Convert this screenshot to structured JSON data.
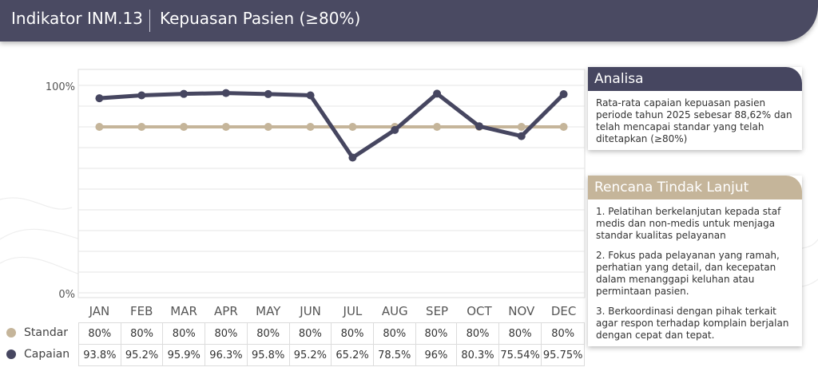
{
  "header": {
    "title": "Indikator INM.13",
    "subtitle": "Kepuasan Pasien (≥80%)"
  },
  "colors": {
    "header_bg": "#4a4a62",
    "standar": "#c5b59a",
    "capaian": "#464660",
    "panel_analisa_head": "#464660",
    "panel_rtl_head": "#c5b59a"
  },
  "chart_data": {
    "type": "line",
    "categories": [
      "JAN",
      "FEB",
      "MAR",
      "APR",
      "MAY",
      "JUN",
      "JUL",
      "AUG",
      "SEP",
      "OCT",
      "NOV",
      "DEC"
    ],
    "ylim": [
      0,
      100
    ],
    "y_ticks": [
      "100%",
      "0%"
    ],
    "grid": true,
    "series": [
      {
        "name": "Standar",
        "values": [
          80,
          80,
          80,
          80,
          80,
          80,
          80,
          80,
          80,
          80,
          80,
          80
        ],
        "labels": [
          "80%",
          "80%",
          "80%",
          "80%",
          "80%",
          "80%",
          "80%",
          "80%",
          "80%",
          "80%",
          "80%",
          "80%"
        ]
      },
      {
        "name": "Capaian",
        "values": [
          93.8,
          95.2,
          95.9,
          96.3,
          95.8,
          95.2,
          65.2,
          78.5,
          96,
          80.3,
          75.54,
          95.75
        ],
        "labels": [
          "93.8%",
          "95.2%",
          "95.9%",
          "96.3%",
          "95.8%",
          "95.2%",
          "65.2%",
          "78.5%",
          "96%",
          "80.3%",
          "75.54%",
          "95.75%"
        ]
      }
    ]
  },
  "analisa": {
    "title": "Analisa",
    "text": "Rata-rata capaian kepuasan pasien periode tahun 2025 sebesar 88,62% dan telah mencapai standar yang telah ditetapkan (≥80%)"
  },
  "rtl": {
    "title": "Rencana Tindak Lanjut",
    "items": [
      "1. Pelatihan berkelanjutan kepada staf medis dan non-medis untuk menjaga standar kualitas pelayanan",
      "2. Fokus pada pelayanan yang ramah, perhatian yang detail, dan kecepatan dalam menanggapi keluhan atau permintaan pasien.",
      "3. Berkoordinasi dengan pihak terkait agar respon terhadap komplain berjalan dengan cepat dan tepat."
    ]
  }
}
